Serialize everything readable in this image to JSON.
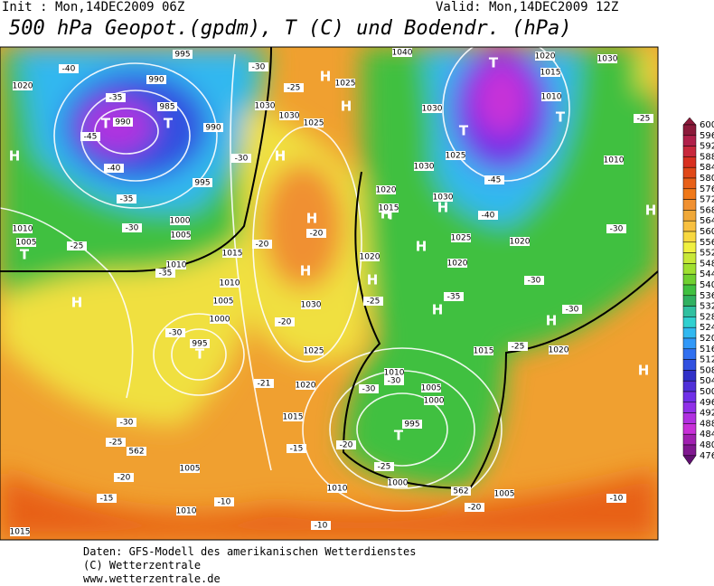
{
  "header": {
    "init": "Init : Mon,14DEC2009 06Z",
    "valid": "Valid: Mon,14DEC2009 12Z",
    "title": "500 hPa Geopot.(gpdm), T (C) und Bodendr. (hPa)"
  },
  "map": {
    "labels": [
      "H",
      "H",
      "H",
      "H",
      "H",
      "H",
      "H",
      "H",
      "H",
      "H",
      "H",
      "H",
      "H",
      "H",
      "H",
      "T",
      "T",
      "T",
      "T",
      "T",
      "T",
      "T",
      "T",
      "T",
      "995",
      "990",
      "985",
      "990",
      "990",
      "995",
      "1000",
      "1005",
      "1010",
      "1015",
      "1010",
      "1005",
      "1000",
      "995",
      "1020",
      "1010",
      "1005",
      "1025",
      "1030",
      "1030",
      "1025",
      "1030",
      "1040",
      "1020",
      "1015",
      "1010",
      "1030",
      "1025",
      "1030",
      "1020",
      "1015",
      "1030",
      "1025",
      "1020",
      "1020",
      "1020",
      "1030",
      "1025",
      "1020",
      "1015",
      "1010",
      "1005",
      "1000",
      "995",
      "1000",
      "1005",
      "1010",
      "1015",
      "1020",
      "1010",
      "1005",
      "1010",
      "1015",
      "-40",
      "-35",
      "-45",
      "-40",
      "-35",
      "-35",
      "-30",
      "-25",
      "-30",
      "-30",
      "-25",
      "-20",
      "-15",
      "-10",
      "-20",
      "-20",
      "-21",
      "-15",
      "-20",
      "-25",
      "-30",
      "-30",
      "-25",
      "-35",
      "-30",
      "-30",
      "-25",
      "-25",
      "-30",
      "-45",
      "-40",
      "-10",
      "-20",
      "-10",
      "-25",
      "-30",
      "-30",
      "-20",
      "562",
      "562"
    ]
  },
  "colorbar": {
    "levels": [
      600,
      596,
      592,
      588,
      584,
      580,
      576,
      572,
      568,
      564,
      560,
      556,
      552,
      548,
      544,
      540,
      536,
      532,
      528,
      524,
      520,
      516,
      512,
      508,
      504,
      500,
      496,
      492,
      488,
      484,
      480,
      476
    ],
    "colors": [
      "#8b1a3a",
      "#b0204a",
      "#c8283c",
      "#d83020",
      "#e04818",
      "#e86018",
      "#f07818",
      "#f09030",
      "#f0a838",
      "#f8c040",
      "#f8d840",
      "#f0f040",
      "#c8e838",
      "#a0e030",
      "#70d030",
      "#40c040",
      "#30b060",
      "#30c0a0",
      "#30d0d0",
      "#30b8f0",
      "#3098f8",
      "#3070f0",
      "#3050e0",
      "#3030c8",
      "#5030d8",
      "#7030e8",
      "#9030e8",
      "#b030e0",
      "#c830d8",
      "#a020b0",
      "#801890",
      "#601070"
    ]
  },
  "footer": {
    "line1": "Daten: GFS-Modell des amerikanischen Wetterdienstes",
    "line2": "(C) Wetterzentrale",
    "line3": "www.wetterzentrale.de"
  }
}
